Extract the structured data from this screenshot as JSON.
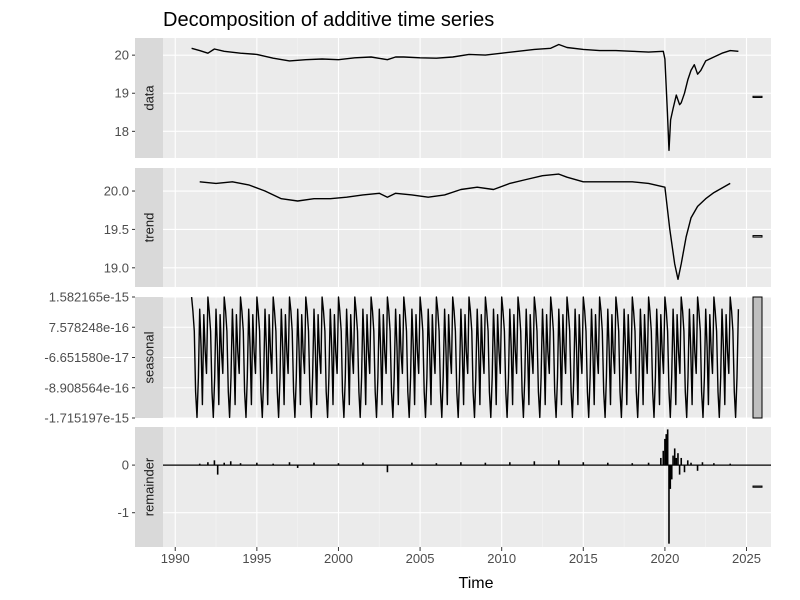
{
  "chart_data": {
    "type": "line",
    "title": "Decomposition of additive time series",
    "xlabel": "Time",
    "xlim": [
      1989.25,
      2026.5
    ],
    "x_ticks": [
      1990,
      1995,
      2000,
      2005,
      2010,
      2015,
      2020,
      2025
    ],
    "x_tick_labels": [
      "1990",
      "1995",
      "2000",
      "2005",
      "2010",
      "2015",
      "2020",
      "2025"
    ],
    "grid": true,
    "series_start": 1991.0,
    "series_end": 2024.5,
    "panels": [
      {
        "name": "data",
        "ylim": [
          17.3,
          20.45
        ],
        "y_ticks": [
          18,
          19,
          20
        ],
        "y_tick_labels": [
          "18",
          "19",
          "20"
        ],
        "range_bar": {
          "low": 18.9,
          "high": 18.92
        },
        "points": [
          [
            1991.0,
            20.18
          ],
          [
            1991.5,
            20.12
          ],
          [
            1992.0,
            20.05
          ],
          [
            1992.4,
            20.16
          ],
          [
            1993.0,
            20.1
          ],
          [
            1994.0,
            20.05
          ],
          [
            1995.0,
            20.02
          ],
          [
            1996.0,
            19.92
          ],
          [
            1997.0,
            19.85
          ],
          [
            1998.0,
            19.88
          ],
          [
            1999.0,
            19.9
          ],
          [
            2000.0,
            19.88
          ],
          [
            2001.0,
            19.93
          ],
          [
            2002.0,
            19.95
          ],
          [
            2003.0,
            19.88
          ],
          [
            2003.5,
            19.95
          ],
          [
            2004.0,
            19.95
          ],
          [
            2005.0,
            19.93
          ],
          [
            2006.0,
            19.92
          ],
          [
            2007.0,
            19.95
          ],
          [
            2008.0,
            20.02
          ],
          [
            2009.0,
            20.0
          ],
          [
            2010.0,
            20.05
          ],
          [
            2011.0,
            20.1
          ],
          [
            2012.0,
            20.15
          ],
          [
            2013.0,
            20.18
          ],
          [
            2013.5,
            20.28
          ],
          [
            2014.0,
            20.2
          ],
          [
            2015.0,
            20.15
          ],
          [
            2016.0,
            20.12
          ],
          [
            2017.0,
            20.12
          ],
          [
            2018.0,
            20.1
          ],
          [
            2019.0,
            20.08
          ],
          [
            2019.9,
            20.1
          ],
          [
            2020.0,
            19.9
          ],
          [
            2020.15,
            18.5
          ],
          [
            2020.25,
            17.5
          ],
          [
            2020.35,
            18.3
          ],
          [
            2020.5,
            18.6
          ],
          [
            2020.7,
            18.95
          ],
          [
            2020.9,
            18.7
          ],
          [
            2021.0,
            18.75
          ],
          [
            2021.2,
            19.0
          ],
          [
            2021.4,
            19.35
          ],
          [
            2021.6,
            19.6
          ],
          [
            2021.8,
            19.75
          ],
          [
            2022.0,
            19.5
          ],
          [
            2022.2,
            19.6
          ],
          [
            2022.5,
            19.85
          ],
          [
            2023.0,
            19.95
          ],
          [
            2023.5,
            20.05
          ],
          [
            2024.0,
            20.12
          ],
          [
            2024.5,
            20.1
          ]
        ]
      },
      {
        "name": "trend",
        "ylim": [
          18.75,
          20.3
        ],
        "y_ticks": [
          19.0,
          19.5,
          20.0
        ],
        "y_tick_labels": [
          "19.0",
          "19.5",
          "20.0"
        ],
        "range_bar": {
          "low": 19.4,
          "high": 19.42
        },
        "points": [
          [
            1991.5,
            20.12
          ],
          [
            1992.5,
            20.1
          ],
          [
            1993.5,
            20.12
          ],
          [
            1994.5,
            20.08
          ],
          [
            1995.5,
            20.0
          ],
          [
            1996.5,
            19.9
          ],
          [
            1997.5,
            19.87
          ],
          [
            1998.5,
            19.9
          ],
          [
            1999.5,
            19.9
          ],
          [
            2000.5,
            19.92
          ],
          [
            2001.5,
            19.95
          ],
          [
            2002.5,
            19.97
          ],
          [
            2003.0,
            19.92
          ],
          [
            2003.5,
            19.97
          ],
          [
            2004.5,
            19.95
          ],
          [
            2005.5,
            19.92
          ],
          [
            2006.5,
            19.95
          ],
          [
            2007.5,
            20.02
          ],
          [
            2008.5,
            20.05
          ],
          [
            2009.5,
            20.02
          ],
          [
            2010.5,
            20.1
          ],
          [
            2011.5,
            20.15
          ],
          [
            2012.5,
            20.2
          ],
          [
            2013.5,
            20.22
          ],
          [
            2014.0,
            20.18
          ],
          [
            2015.0,
            20.12
          ],
          [
            2016.0,
            20.12
          ],
          [
            2017.0,
            20.12
          ],
          [
            2018.0,
            20.12
          ],
          [
            2019.0,
            20.1
          ],
          [
            2020.0,
            20.05
          ],
          [
            2020.3,
            19.5
          ],
          [
            2020.6,
            19.05
          ],
          [
            2020.8,
            18.85
          ],
          [
            2021.0,
            19.05
          ],
          [
            2021.3,
            19.4
          ],
          [
            2021.6,
            19.65
          ],
          [
            2022.0,
            19.8
          ],
          [
            2022.5,
            19.9
          ],
          [
            2023.0,
            19.98
          ],
          [
            2024.0,
            20.1
          ]
        ]
      },
      {
        "name": "seasonal",
        "ylim": [
          -1.715197e-15,
          1.582165e-15
        ],
        "y_ticks": [
          1.582165e-15,
          7.578248e-16,
          -6.65158e-17,
          -8.908564e-16,
          -1.715197e-15
        ],
        "y_tick_labels": [
          "1.582165e-15",
          "7.578248e-16",
          "-6.651580e-17",
          "-8.908564e-16",
          "-1.715197e-15"
        ],
        "range_bar": {
          "low": -1.715197e-15,
          "high": 1.582165e-15
        },
        "pattern": [
          1.58e-15,
          1.2e-15,
          6.5e-16,
          -1e-15,
          -1.7e-15,
          -6e-16,
          1.25e-15,
          2e-16,
          -1.35e-15,
          1.1e-15,
          1e-16,
          -5e-16
        ],
        "points": []
      },
      {
        "name": "remainder",
        "ylim": [
          -1.72,
          0.8
        ],
        "y_ticks": [
          -1,
          0
        ],
        "y_tick_labels": [
          "-1",
          "0"
        ],
        "range_bar": {
          "low": -0.46,
          "high": -0.44
        },
        "style": "spikes",
        "points": [
          [
            1991.5,
            0.03
          ],
          [
            1992.0,
            0.06
          ],
          [
            1992.4,
            0.1
          ],
          [
            1992.6,
            -0.2
          ],
          [
            1993.0,
            0.05
          ],
          [
            1993.4,
            0.08
          ],
          [
            1994.0,
            0.04
          ],
          [
            1995.0,
            0.05
          ],
          [
            1996.0,
            0.03
          ],
          [
            1997.0,
            0.06
          ],
          [
            1997.5,
            -0.06
          ],
          [
            1998.5,
            0.05
          ],
          [
            2000.0,
            0.04
          ],
          [
            2001.5,
            0.05
          ],
          [
            2003.0,
            -0.15
          ],
          [
            2004.5,
            0.05
          ],
          [
            2006.0,
            0.04
          ],
          [
            2007.5,
            0.06
          ],
          [
            2009.0,
            0.05
          ],
          [
            2010.5,
            0.06
          ],
          [
            2012.0,
            0.08
          ],
          [
            2013.5,
            0.1
          ],
          [
            2015.0,
            0.06
          ],
          [
            2016.5,
            0.05
          ],
          [
            2018.0,
            0.04
          ],
          [
            2019.0,
            0.05
          ],
          [
            2019.75,
            0.15
          ],
          [
            2019.9,
            0.3
          ],
          [
            2020.0,
            0.55
          ],
          [
            2020.08,
            0.65
          ],
          [
            2020.17,
            0.75
          ],
          [
            2020.25,
            -1.65
          ],
          [
            2020.33,
            -0.5
          ],
          [
            2020.42,
            -0.3
          ],
          [
            2020.5,
            0.2
          ],
          [
            2020.6,
            0.35
          ],
          [
            2020.7,
            0.15
          ],
          [
            2020.8,
            0.25
          ],
          [
            2020.9,
            -0.2
          ],
          [
            2021.0,
            0.15
          ],
          [
            2021.2,
            -0.15
          ],
          [
            2021.4,
            0.1
          ],
          [
            2021.6,
            0.05
          ],
          [
            2022.0,
            -0.12
          ],
          [
            2022.3,
            0.06
          ],
          [
            2023.0,
            0.04
          ],
          [
            2024.0,
            0.03
          ]
        ]
      }
    ]
  }
}
